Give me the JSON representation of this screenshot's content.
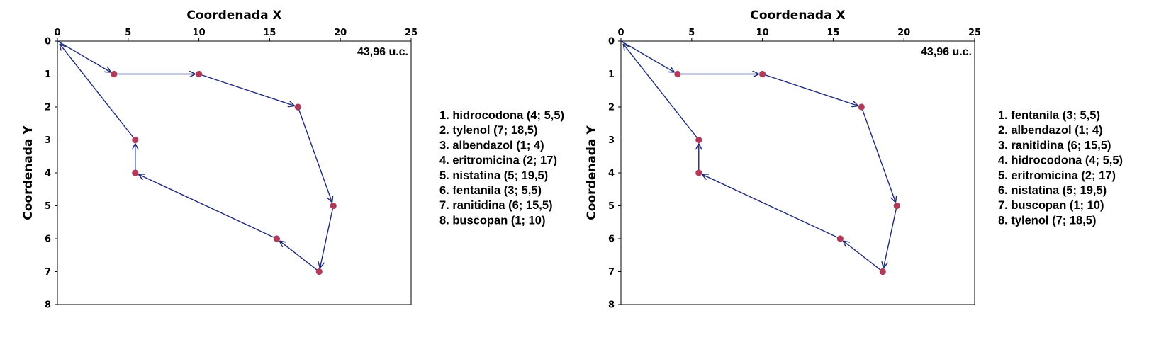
{
  "colors": {
    "route": "#1f2a7a",
    "point": "#b03a5a",
    "frame": "#000000"
  },
  "chart_data": [
    {
      "type": "scatter",
      "xlabel": "Coordenada X",
      "ylabel": "Coordenada Y",
      "xlim": [
        0,
        25
      ],
      "ylim": [
        8,
        0
      ],
      "y_inverted": true,
      "x_ticks": [
        0,
        5,
        10,
        15,
        20,
        25
      ],
      "y_ticks": [
        0,
        1,
        2,
        3,
        4,
        5,
        6,
        7,
        8
      ],
      "x_axis_position": "top",
      "grid": false,
      "total_label": "43,96 u.c.",
      "route": [
        [
          0,
          0
        ],
        [
          4,
          1
        ],
        [
          10,
          1
        ],
        [
          17,
          2
        ],
        [
          19.5,
          5
        ],
        [
          18.5,
          7
        ],
        [
          15.5,
          6
        ],
        [
          5.5,
          4
        ],
        [
          5.5,
          3
        ],
        [
          0,
          0
        ]
      ],
      "points": [
        [
          4,
          1
        ],
        [
          10,
          1
        ],
        [
          17,
          2
        ],
        [
          19.5,
          5
        ],
        [
          18.5,
          7
        ],
        [
          15.5,
          6
        ],
        [
          5.5,
          4
        ],
        [
          5.5,
          3
        ]
      ],
      "legend": [
        "1. hidrocodona (4; 5,5)",
        "2. tylenol (7; 18,5)",
        "3. albendazol (1; 4)",
        "4. eritromicina (2; 17)",
        "5. nistatina (5; 19,5)",
        "6. fentanila (3; 5,5)",
        "7. ranitidina (6; 15,5)",
        "8. buscopan (1; 10)"
      ]
    },
    {
      "type": "scatter",
      "xlabel": "Coordenada X",
      "ylabel": "Coordenada Y",
      "xlim": [
        0,
        25
      ],
      "ylim": [
        8,
        0
      ],
      "y_inverted": true,
      "x_ticks": [
        0,
        5,
        10,
        15,
        20,
        25
      ],
      "y_ticks": [
        0,
        1,
        2,
        3,
        4,
        5,
        6,
        7,
        8
      ],
      "x_axis_position": "top",
      "grid": false,
      "total_label": "43,96 u.c.",
      "route": [
        [
          0,
          0
        ],
        [
          4,
          1
        ],
        [
          10,
          1
        ],
        [
          17,
          2
        ],
        [
          19.5,
          5
        ],
        [
          18.5,
          7
        ],
        [
          15.5,
          6
        ],
        [
          5.5,
          4
        ],
        [
          5.5,
          3
        ],
        [
          0,
          0
        ]
      ],
      "points": [
        [
          4,
          1
        ],
        [
          10,
          1
        ],
        [
          17,
          2
        ],
        [
          19.5,
          5
        ],
        [
          18.5,
          7
        ],
        [
          15.5,
          6
        ],
        [
          5.5,
          4
        ],
        [
          5.5,
          3
        ]
      ],
      "legend": [
        "1. fentanila (3; 5,5)",
        "2. albendazol (1; 4)",
        "3. ranitidina (6; 15,5)",
        "4. hidrocodona (4; 5,5)",
        "5. eritromicina (2; 17)",
        "6. nistatina (5; 19,5)",
        "7. buscopan (1; 10)",
        "8. tylenol (7; 18,5)"
      ]
    }
  ]
}
